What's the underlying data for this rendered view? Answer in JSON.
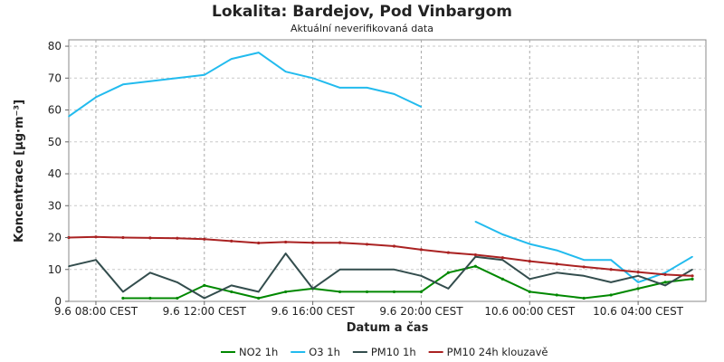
{
  "chart_data": {
    "type": "line",
    "title": "Lokalita: Bardejov, Pod Vinbargom",
    "subtitle": "Aktuální neverifikovaná data",
    "xlabel": "Datum a čas",
    "ylabel": "Koncentrace [µg·m⁻³]",
    "ylim": [
      0,
      82
    ],
    "xlim": [
      0,
      23.5
    ],
    "yticks": [
      0,
      10,
      20,
      30,
      40,
      50,
      60,
      70,
      80
    ],
    "xticks": [
      {
        "x": 1,
        "label": "9.6 08:00 CEST"
      },
      {
        "x": 5,
        "label": "9.6 12:00 CEST"
      },
      {
        "x": 9,
        "label": "9.6 16:00 CEST"
      },
      {
        "x": 13,
        "label": "9.6 20:00 CEST"
      },
      {
        "x": 17,
        "label": "10.6 00:00 CEST"
      },
      {
        "x": 21,
        "label": "10.6 04:00 CEST"
      }
    ],
    "grid": true,
    "legend": "bottom",
    "x": [
      0,
      1,
      2,
      3,
      4,
      5,
      6,
      7,
      8,
      9,
      10,
      11,
      12,
      13,
      14,
      15,
      16,
      17,
      18,
      19,
      20,
      21,
      22,
      23
    ],
    "series": [
      {
        "name": "NO2 1h",
        "color": "#008800",
        "markers": true,
        "values": [
          null,
          null,
          1,
          1,
          1,
          5,
          3,
          1,
          3,
          4,
          3,
          3,
          3,
          3,
          9,
          11,
          7,
          3,
          2,
          1,
          2,
          4,
          6,
          7
        ]
      },
      {
        "name": "O3 1h",
        "color": "#22bbee",
        "markers": false,
        "values": [
          58,
          64,
          68,
          69,
          70,
          71,
          76,
          78,
          72,
          70,
          67,
          67,
          65,
          61,
          null,
          25,
          21,
          18,
          16,
          13,
          13,
          6,
          9,
          14
        ]
      },
      {
        "name": "PM10 1h",
        "color": "#334d4d",
        "markers": false,
        "values": [
          11,
          13,
          3,
          9,
          6,
          1,
          5,
          3,
          15,
          4,
          10,
          10,
          10,
          8,
          4,
          14,
          13,
          7,
          9,
          8,
          6,
          8,
          5,
          10
        ]
      },
      {
        "name": "PM10 24h klouzavě",
        "color": "#aa2222",
        "markers": true,
        "values": [
          20,
          20.2,
          20,
          19.9,
          19.8,
          19.5,
          18.9,
          18.3,
          18.6,
          18.4,
          18.4,
          17.9,
          17.3,
          16.2,
          15.3,
          14.6,
          13.7,
          12.6,
          11.7,
          10.8,
          10,
          9.2,
          8.4,
          8
        ]
      }
    ]
  }
}
